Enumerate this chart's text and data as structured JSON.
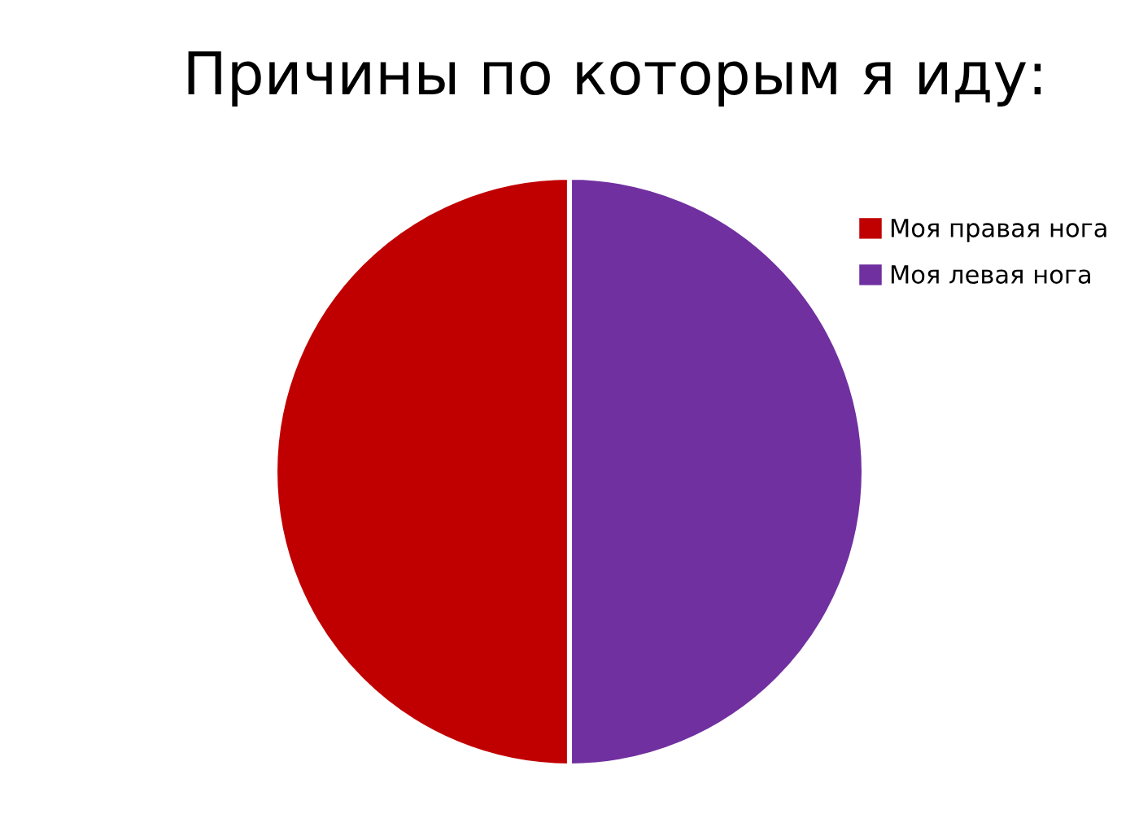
{
  "chart_data": {
    "type": "pie",
    "title": "Причины по которым я иду:",
    "categories": [
      "Моя правая нога",
      "Моя левая нога"
    ],
    "values": [
      50,
      50
    ],
    "colors": [
      "#c00000",
      "#7030a0"
    ],
    "legend": "top right"
  }
}
